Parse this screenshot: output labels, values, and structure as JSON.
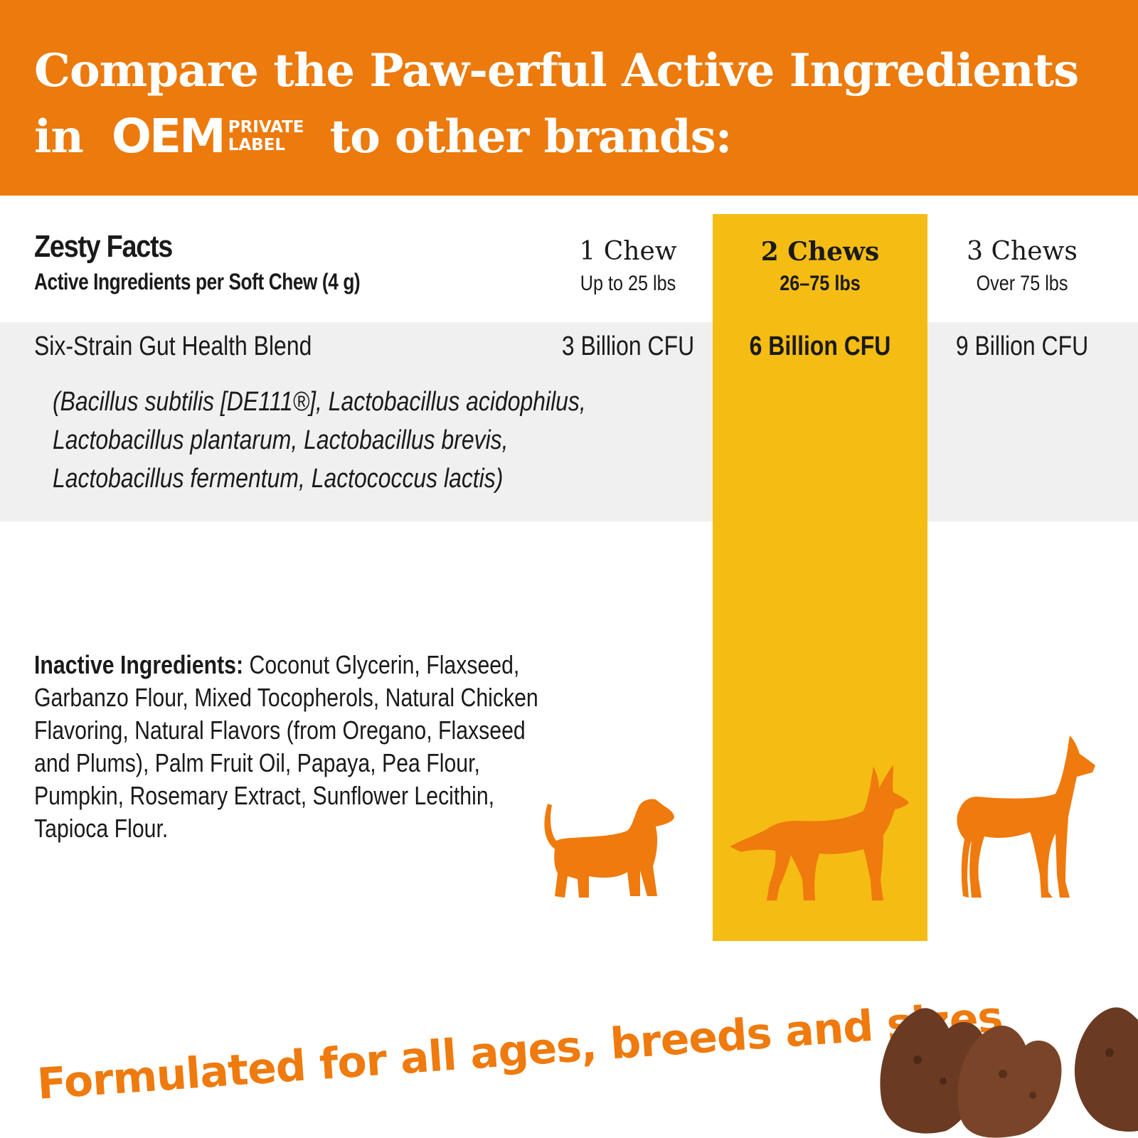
{
  "header": {
    "line1": "Compare the Paw-erful Active Ingredients",
    "line2_prefix": "in",
    "line2_suffix": "to other brands:",
    "logo": {
      "big": "OEM",
      "small_top": "PRIVATE",
      "small_bottom": "LABEL"
    }
  },
  "facts": {
    "title": "Zesty Facts",
    "subtitle": "Active Ingredients per Soft Chew (4 g)"
  },
  "columns": [
    {
      "name": "1 Chew",
      "range": "Up to 25 lbs",
      "cfu": "3 Billion CFU"
    },
    {
      "name": "2 Chews",
      "range": "26–75 lbs",
      "cfu": "6 Billion CFU"
    },
    {
      "name": "3 Chews",
      "range": "Over 75 lbs",
      "cfu": "9 Billion CFU"
    }
  ],
  "blend": {
    "label": "Six-Strain Gut Health Blend",
    "strain_lines": [
      "(Bacillus subtilis [DE111®], Lactobacillus acidophilus,",
      "Lactobacillus plantarum, Lactobacillus brevis,",
      "Lactobacillus fermentum, Lactococcus lactis)"
    ]
  },
  "inactive": {
    "label": "Inactive Ingredients:",
    "lines": [
      " Coconut Glycerin, Flaxseed,",
      "Garbanzo Flour, Mixed Tocopherols, Natural Chicken",
      "Flavoring, Natural Flavors (from Oregano, Flaxseed",
      "and Plums), Palm Fruit Oil, Papaya, Pea Flour,",
      "Pumpkin, Rosemary Extract, Sunflower Lecithin,",
      "Tapioca Flour."
    ]
  },
  "tagline": "Formulated for all ages, breeds and sizes",
  "colors": {
    "header_orange": "#ec7a0c",
    "highlight_yellow": "#f5bc14",
    "dog_orange": "#ef7a0d",
    "band_gray": "#f0f0f0",
    "chew_brown": "#6b3a22"
  },
  "icons": [
    "small-dog-icon",
    "medium-dog-icon",
    "large-dog-icon",
    "soft-chew-treats-image"
  ]
}
